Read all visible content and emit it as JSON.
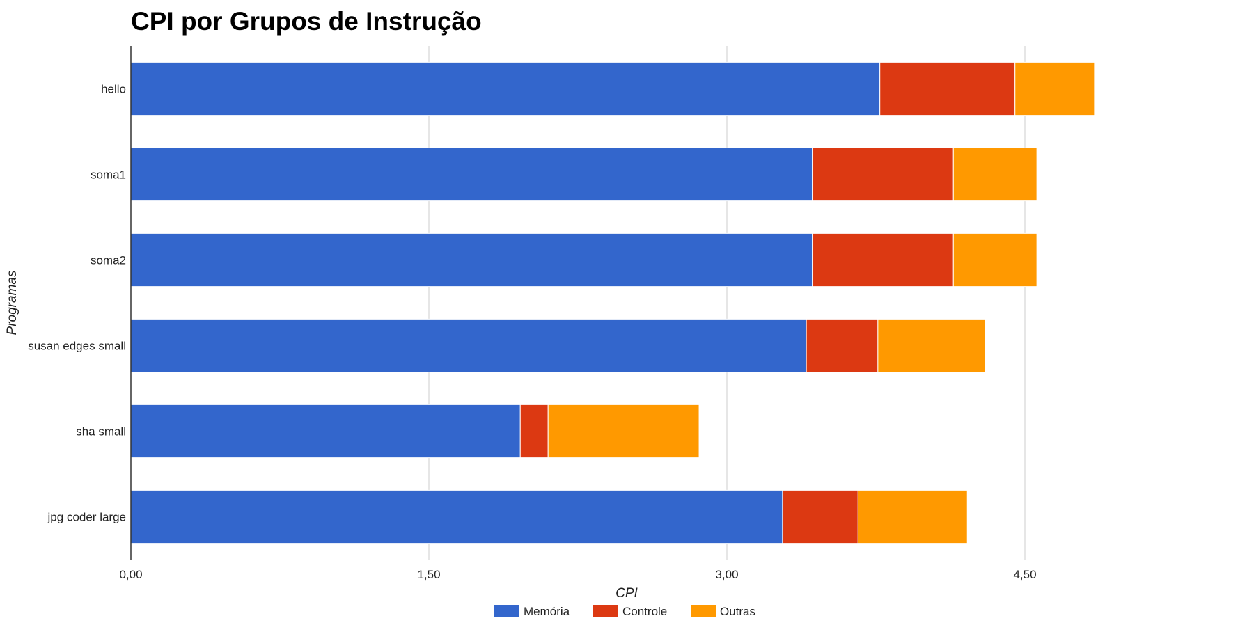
{
  "chart_data": {
    "type": "bar",
    "orientation": "horizontal",
    "stacked": true,
    "title": "CPI por Grupos de Instrução",
    "xlabel": "CPI",
    "ylabel": "Programas",
    "xlim": [
      0,
      6
    ],
    "xticks": [
      0,
      1.5,
      3,
      4.5
    ],
    "xtick_labels": [
      "0,00",
      "1,50",
      "3,00",
      "4,50"
    ],
    "grid": true,
    "legend_position": "bottom",
    "categories": [
      "hello",
      "soma1",
      "soma2",
      "susan edges small",
      "sha small",
      "jpg coder large"
    ],
    "series": [
      {
        "name": "Memória",
        "color": "#3366cc",
        "values": [
          3.77,
          3.43,
          3.43,
          3.4,
          1.96,
          3.28
        ]
      },
      {
        "name": "Controle",
        "color": "#dc3912",
        "values": [
          0.68,
          0.71,
          0.71,
          0.36,
          0.14,
          0.38
        ]
      },
      {
        "name": "Outras",
        "color": "#ff9900",
        "values": [
          0.4,
          0.42,
          0.42,
          0.54,
          0.76,
          0.55
        ]
      }
    ]
  }
}
